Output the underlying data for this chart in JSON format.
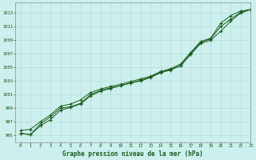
{
  "title": "Graphe pression niveau de la mer (hPa)",
  "background_color": "#cdf0ee",
  "grid_color": "#b0d8cc",
  "line_color": "#1a5c1a",
  "xlim": [
    -0.5,
    23
  ],
  "ylim": [
    994.0,
    1014.5
  ],
  "xticks": [
    0,
    1,
    2,
    3,
    4,
    5,
    6,
    7,
    8,
    9,
    10,
    11,
    12,
    13,
    14,
    15,
    16,
    17,
    18,
    19,
    20,
    21,
    22,
    23
  ],
  "yticks": [
    995,
    997,
    999,
    1001,
    1003,
    1005,
    1007,
    1009,
    1011,
    1013
  ],
  "series1_x": [
    0,
    1,
    2,
    3,
    4,
    5,
    6,
    7,
    8,
    9,
    10,
    11,
    12,
    13,
    14,
    15,
    16,
    17,
    18,
    19,
    20,
    21,
    22,
    23
  ],
  "series1_y": [
    995.3,
    995.1,
    996.4,
    997.3,
    998.7,
    999.1,
    999.6,
    1000.8,
    1001.5,
    1001.9,
    1002.3,
    1002.7,
    1003.0,
    1003.5,
    1004.2,
    1004.6,
    1005.3,
    1007.0,
    1008.7,
    1009.2,
    1011.0,
    1012.1,
    1013.1,
    1013.5
  ],
  "series2_x": [
    0,
    1,
    2,
    3,
    4,
    5,
    6,
    7,
    8,
    9,
    10,
    11,
    12,
    13,
    14,
    15,
    16,
    17,
    18,
    19,
    20,
    21,
    22,
    23
  ],
  "series2_y": [
    995.3,
    995.1,
    996.7,
    997.7,
    999.0,
    999.2,
    999.7,
    1001.0,
    1001.6,
    1002.0,
    1002.3,
    1002.7,
    1003.1,
    1003.6,
    1004.3,
    1004.7,
    1005.2,
    1006.9,
    1008.5,
    1009.0,
    1010.3,
    1011.8,
    1013.0,
    1013.5
  ],
  "series3_x": [
    0,
    1,
    2,
    3,
    4,
    5,
    6,
    7,
    8,
    9,
    10,
    11,
    12,
    13,
    14,
    15,
    16,
    17,
    18,
    19,
    20,
    21,
    22,
    23
  ],
  "series3_y": [
    995.7,
    995.9,
    997.0,
    998.0,
    999.3,
    999.6,
    1000.2,
    1001.3,
    1001.8,
    1002.2,
    1002.5,
    1002.9,
    1003.3,
    1003.7,
    1004.4,
    1004.8,
    1005.5,
    1007.2,
    1008.8,
    1009.3,
    1011.5,
    1012.6,
    1013.3,
    1013.5
  ]
}
